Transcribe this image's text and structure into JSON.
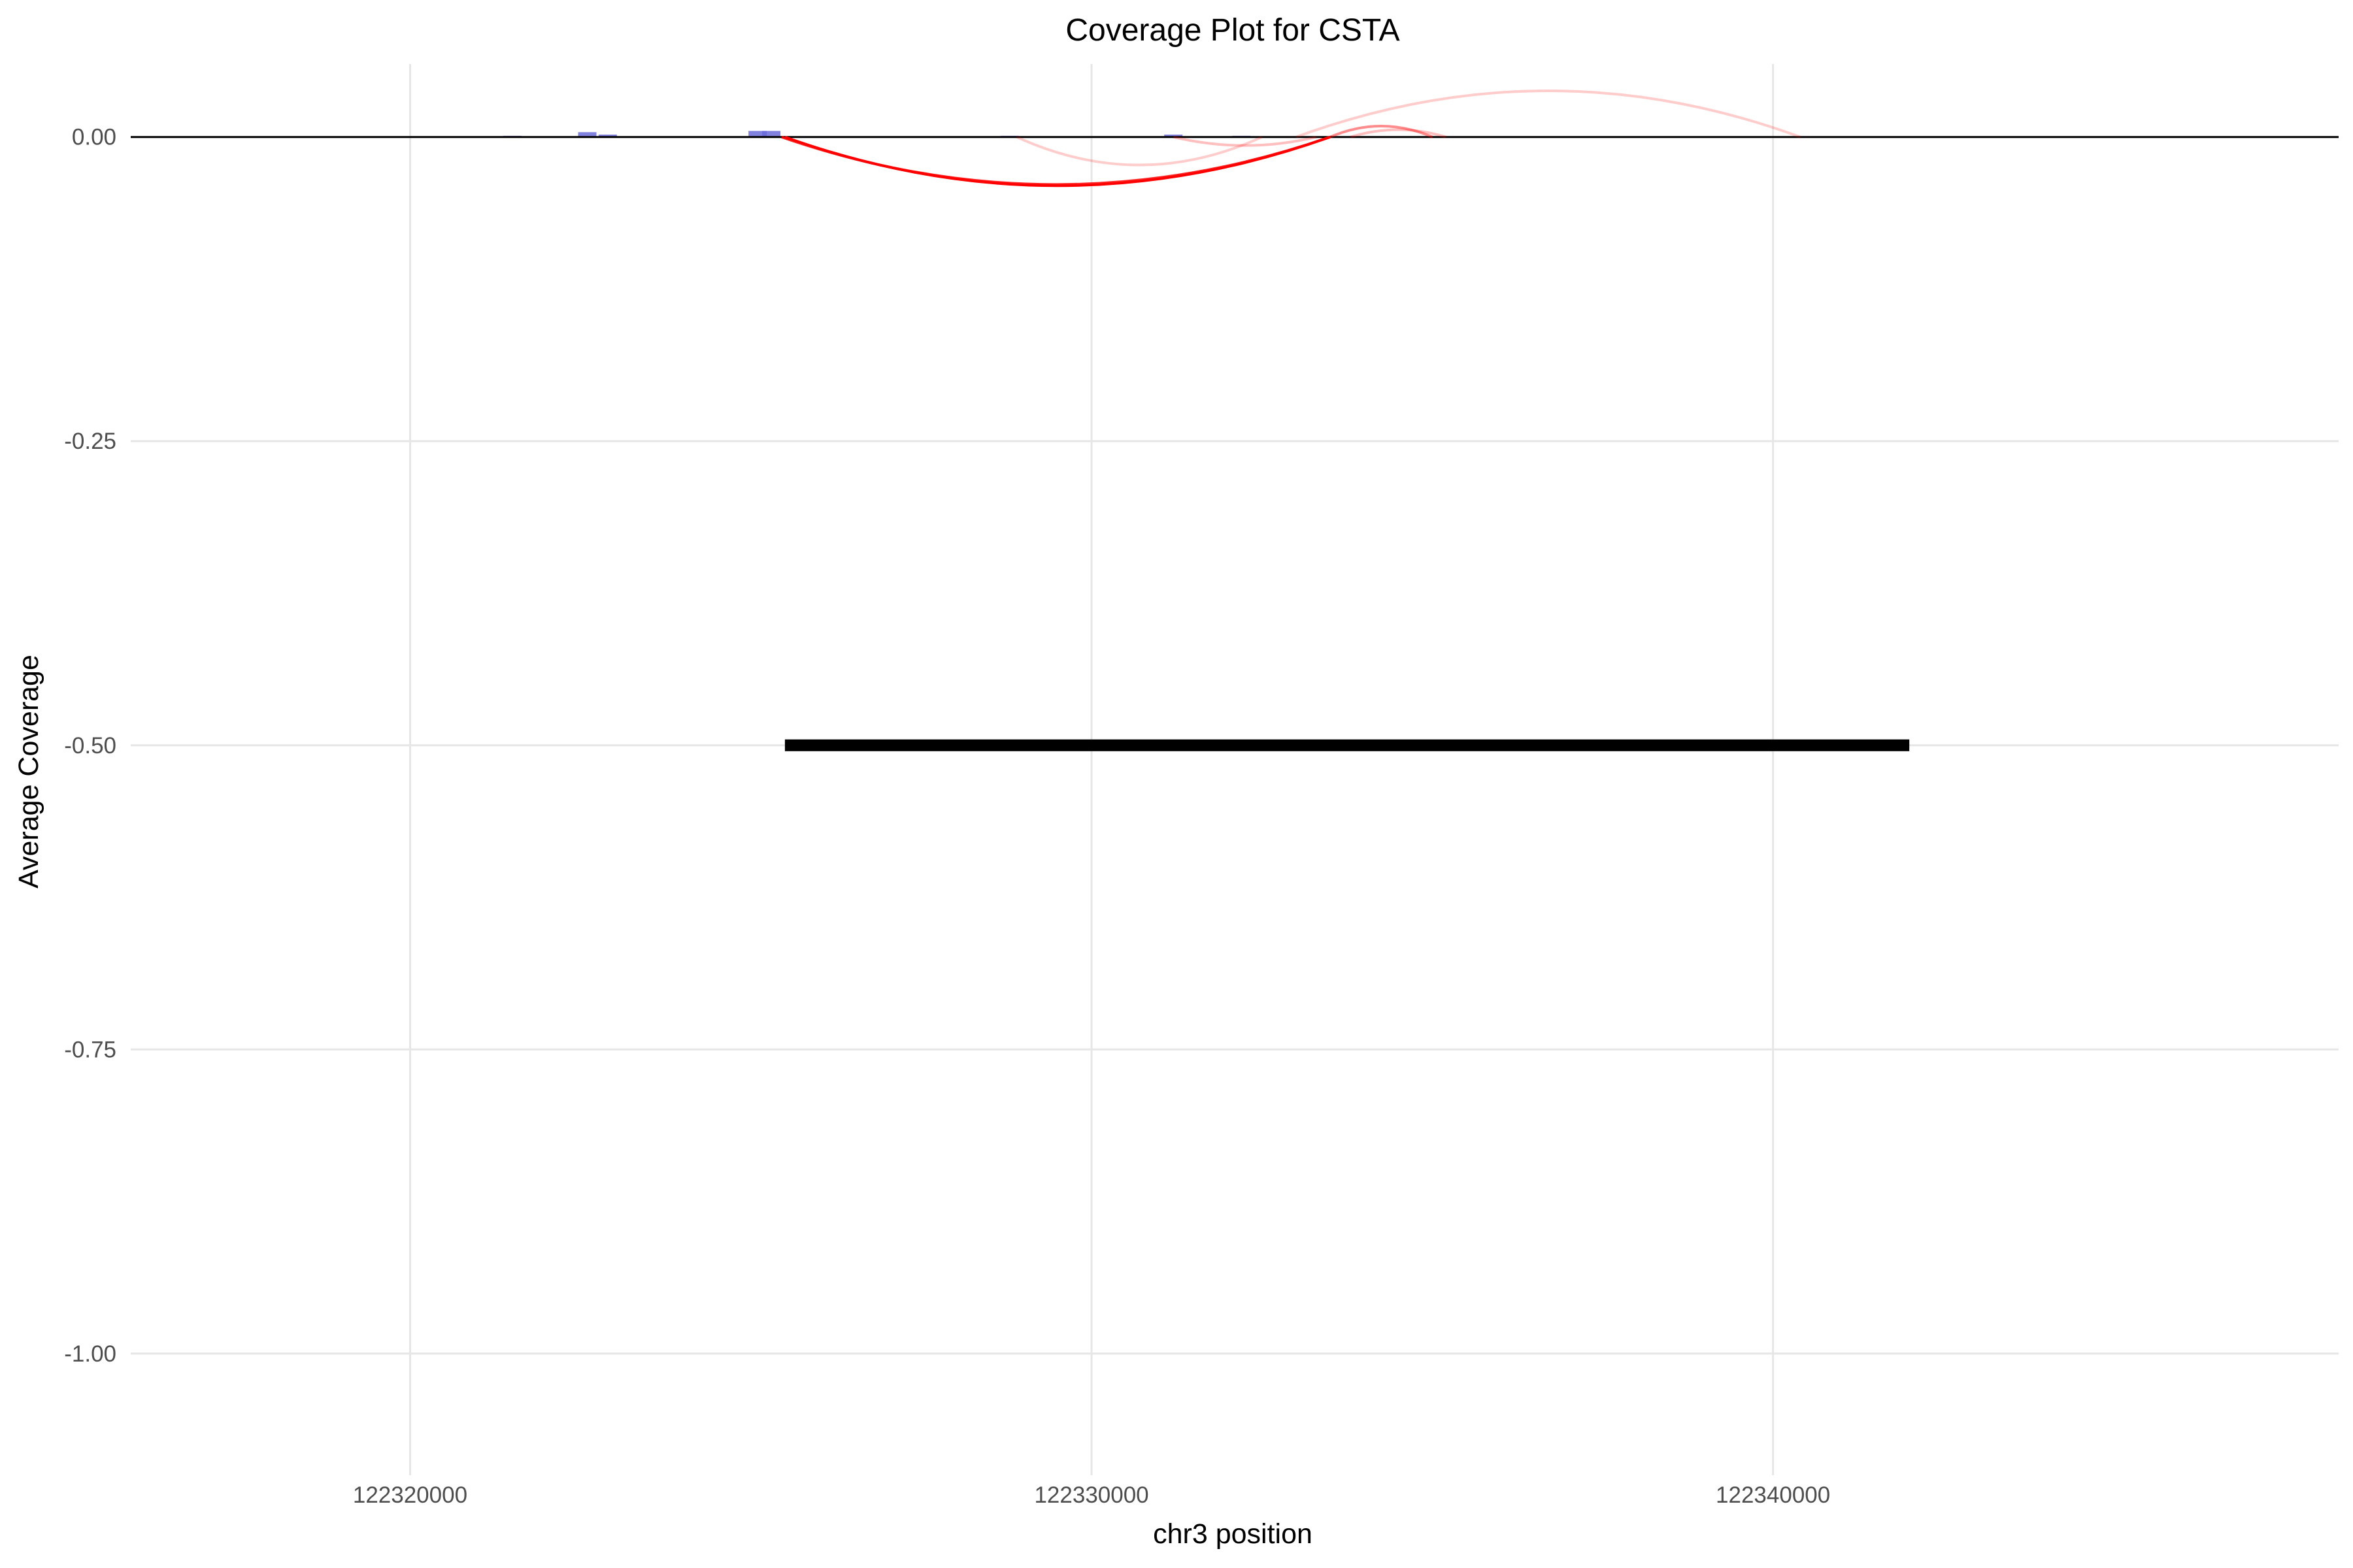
{
  "chart_data": {
    "type": "line",
    "title": "Coverage Plot for CSTA",
    "xlabel": "chr3 position",
    "ylabel": "Average Coverage",
    "xlim": [
      122315900,
      122348300
    ],
    "ylim": [
      -1.1,
      0.06
    ],
    "x_ticks": [
      {
        "value": 122320000,
        "label": "122320000"
      },
      {
        "value": 122330000,
        "label": "122330000"
      },
      {
        "value": 122340000,
        "label": "122340000"
      }
    ],
    "y_ticks": [
      {
        "value": 0.0,
        "label": "0.00"
      },
      {
        "value": -0.25,
        "label": "-0.25"
      },
      {
        "value": -0.5,
        "label": "-0.50"
      },
      {
        "value": -0.75,
        "label": "-0.75"
      },
      {
        "value": -1.0,
        "label": "-1.00"
      }
    ],
    "grid": true,
    "legend": "none",
    "baseline": 0,
    "coverage_bars": {
      "color": "#6b6bd9",
      "points": [
        {
          "x": 122321500,
          "y": 0.001
        },
        {
          "x": 122322600,
          "y": 0.004
        },
        {
          "x": 122322900,
          "y": 0.002
        },
        {
          "x": 122325100,
          "y": 0.005
        },
        {
          "x": 122325300,
          "y": 0.005
        },
        {
          "x": 122328800,
          "y": 0.001
        },
        {
          "x": 122331200,
          "y": 0.002
        },
        {
          "x": 122332200,
          "y": 0.001
        }
      ]
    },
    "junction_arcs": {
      "color": "#ff0000",
      "arcs": [
        {
          "start": 122325500,
          "end": 122333500,
          "peak": -0.04,
          "opacity": 1.0
        },
        {
          "start": 122325450,
          "end": 122333500,
          "peak": -0.039,
          "opacity": 0.85
        },
        {
          "start": 122328900,
          "end": 122332500,
          "peak": -0.023,
          "opacity": 0.2
        },
        {
          "start": 122331200,
          "end": 122333300,
          "peak": -0.007,
          "opacity": 0.25
        },
        {
          "start": 122333500,
          "end": 122335000,
          "peak": 0.009,
          "opacity": 0.45
        },
        {
          "start": 122333800,
          "end": 122335200,
          "peak": 0.006,
          "opacity": 0.25
        },
        {
          "start": 122333000,
          "end": 122340400,
          "peak": 0.038,
          "opacity": 0.2
        }
      ]
    },
    "gene_model": {
      "color": "#000000",
      "start": 122325500,
      "end": 122342000,
      "y": -0.5
    }
  }
}
